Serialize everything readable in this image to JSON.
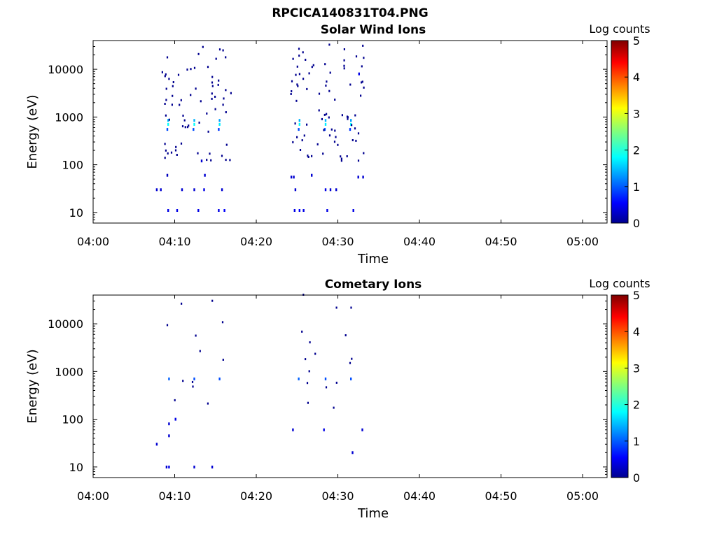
{
  "figure": {
    "title": "RPCICA140831T04.PNG"
  },
  "chart_data": [
    {
      "type": "heatmap",
      "title": "Solar Wind Ions",
      "xlabel": "Time",
      "ylabel": "Energy (eV)",
      "x_ticks": [
        "04:00",
        "04:10",
        "04:20",
        "04:30",
        "04:40",
        "04:50",
        "05:00"
      ],
      "x_range": [
        "04:00",
        "05:03"
      ],
      "y_scale": "log",
      "y_ticks": [
        "10",
        "100",
        "1000",
        "10000"
      ],
      "y_range": [
        6,
        40000
      ],
      "colorbar": {
        "label": "Log counts",
        "ticks": [
          "0",
          "1",
          "2",
          "3",
          "4",
          "5"
        ],
        "range": [
          0,
          5
        ],
        "colormap": "jet"
      },
      "cells": [
        {
          "t": 7.8,
          "e": 30,
          "v": 0.4
        },
        {
          "t": 8.3,
          "e": 30,
          "v": 0.4
        },
        {
          "t": 9.2,
          "e": 11,
          "v": 0.5
        },
        {
          "t": 10.3,
          "e": 11,
          "v": 0.5
        },
        {
          "t": 10.9,
          "e": 30,
          "v": 0.4
        },
        {
          "t": 12.4,
          "e": 30,
          "v": 0.4
        },
        {
          "t": 12.9,
          "e": 11,
          "v": 0.5
        },
        {
          "t": 13.6,
          "e": 30,
          "v": 0.5
        },
        {
          "t": 13.7,
          "e": 60,
          "v": 0.4
        },
        {
          "t": 15.4,
          "e": 11,
          "v": 0.5
        },
        {
          "t": 15.8,
          "e": 30,
          "v": 0.4
        },
        {
          "t": 16.1,
          "e": 11,
          "v": 0.6
        },
        {
          "t": 13.3,
          "e": 120,
          "v": 0.4
        },
        {
          "t": 9.1,
          "e": 60,
          "v": 0.3
        },
        {
          "t": 9.2,
          "e": 700,
          "v": 1.9
        },
        {
          "t": 9.2,
          "e": 850,
          "v": 1.6
        },
        {
          "t": 12.4,
          "e": 700,
          "v": 1.9
        },
        {
          "t": 12.4,
          "e": 850,
          "v": 1.5
        },
        {
          "t": 15.5,
          "e": 700,
          "v": 1.8
        },
        {
          "t": 15.5,
          "e": 850,
          "v": 1.4
        },
        {
          "t": 9.1,
          "e": 550,
          "v": 1.0
        },
        {
          "t": 12.3,
          "e": 550,
          "v": 1.0
        },
        {
          "t": 15.4,
          "e": 550,
          "v": 0.9
        },
        {
          "t": 24.3,
          "e": 55,
          "v": 0.4
        },
        {
          "t": 24.6,
          "e": 55,
          "v": 0.4
        },
        {
          "t": 24.8,
          "e": 30,
          "v": 0.4
        },
        {
          "t": 24.7,
          "e": 11,
          "v": 0.5
        },
        {
          "t": 25.3,
          "e": 11,
          "v": 0.6
        },
        {
          "t": 25.8,
          "e": 11,
          "v": 0.5
        },
        {
          "t": 26.8,
          "e": 60,
          "v": 0.4
        },
        {
          "t": 28.5,
          "e": 30,
          "v": 0.5
        },
        {
          "t": 28.7,
          "e": 11,
          "v": 0.5
        },
        {
          "t": 29.1,
          "e": 30,
          "v": 0.4
        },
        {
          "t": 29.8,
          "e": 30,
          "v": 0.4
        },
        {
          "t": 31.9,
          "e": 11,
          "v": 0.5
        },
        {
          "t": 32.5,
          "e": 55,
          "v": 0.4
        },
        {
          "t": 33.1,
          "e": 55,
          "v": 0.4
        },
        {
          "t": 25.3,
          "e": 700,
          "v": 1.9
        },
        {
          "t": 25.3,
          "e": 850,
          "v": 1.5
        },
        {
          "t": 28.5,
          "e": 700,
          "v": 1.8
        },
        {
          "t": 28.5,
          "e": 850,
          "v": 1.5
        },
        {
          "t": 31.6,
          "e": 700,
          "v": 1.9
        },
        {
          "t": 31.6,
          "e": 850,
          "v": 1.4
        },
        {
          "t": 25.2,
          "e": 550,
          "v": 1.0
        },
        {
          "t": 28.4,
          "e": 550,
          "v": 1.0
        },
        {
          "t": 31.5,
          "e": 550,
          "v": 0.9
        },
        {
          "t": 32.6,
          "e": 8000,
          "v": 0.5
        }
      ]
    },
    {
      "type": "heatmap",
      "title": "Cometary Ions",
      "xlabel": "Time",
      "ylabel": "Energy (eV)",
      "x_ticks": [
        "04:00",
        "04:10",
        "04:20",
        "04:30",
        "04:40",
        "04:50",
        "05:00"
      ],
      "x_range": [
        "04:00",
        "05:03"
      ],
      "y_scale": "log",
      "y_ticks": [
        "10",
        "100",
        "1000",
        "10000"
      ],
      "y_range": [
        6,
        40000
      ],
      "colorbar": {
        "label": "Log counts",
        "ticks": [
          "0",
          "1",
          "2",
          "3",
          "4",
          "5"
        ],
        "range": [
          0,
          5
        ],
        "colormap": "jet"
      },
      "cells": [
        {
          "t": 7.8,
          "e": 30,
          "v": 0.4
        },
        {
          "t": 9.0,
          "e": 10,
          "v": 0.4
        },
        {
          "t": 9.3,
          "e": 10,
          "v": 0.5
        },
        {
          "t": 9.3,
          "e": 45,
          "v": 0.4
        },
        {
          "t": 10.1,
          "e": 100,
          "v": 0.5
        },
        {
          "t": 9.3,
          "e": 80,
          "v": 0.4
        },
        {
          "t": 12.4,
          "e": 10,
          "v": 0.4
        },
        {
          "t": 14.6,
          "e": 10,
          "v": 0.4
        },
        {
          "t": 9.3,
          "e": 700,
          "v": 1.1
        },
        {
          "t": 12.4,
          "e": 700,
          "v": 1.0
        },
        {
          "t": 15.5,
          "e": 700,
          "v": 1.0
        },
        {
          "t": 24.5,
          "e": 60,
          "v": 0.4
        },
        {
          "t": 28.3,
          "e": 60,
          "v": 0.5
        },
        {
          "t": 31.8,
          "e": 20,
          "v": 0.4
        },
        {
          "t": 33.0,
          "e": 60,
          "v": 0.4
        },
        {
          "t": 25.2,
          "e": 700,
          "v": 1.1
        },
        {
          "t": 28.5,
          "e": 700,
          "v": 1.0
        },
        {
          "t": 31.6,
          "e": 700,
          "v": 1.0
        }
      ]
    }
  ]
}
